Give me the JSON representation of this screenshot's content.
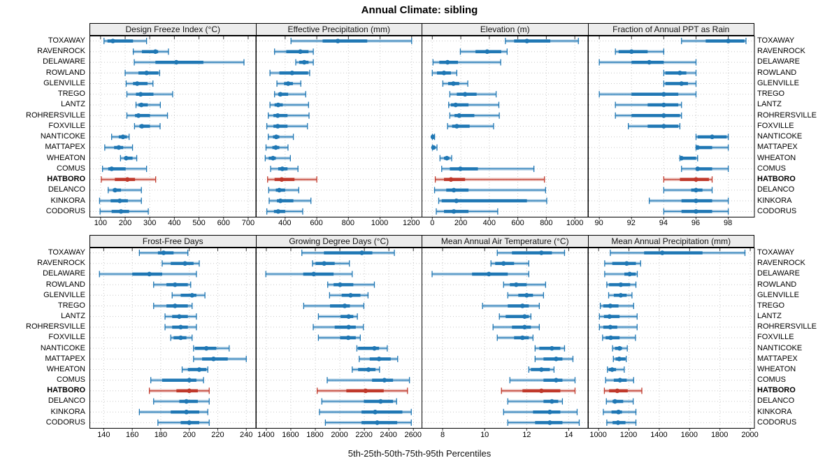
{
  "title": "Annual Climate: sibling",
  "caption": "5th-25th-50th-75th-95th Percentiles",
  "percentile_labels": [
    "5th",
    "25th",
    "50th",
    "75th",
    "95th"
  ],
  "stations": [
    "TOXAWAY",
    "RAVENROCK",
    "DELAWARE",
    "ROWLAND",
    "GLENVILLE",
    "TREGO",
    "LANTZ",
    "ROHRERSVILLE",
    "FOXVILLE",
    "NANTICOKE",
    "MATTAPEX",
    "WHEATON",
    "COMUS",
    "HATBORO",
    "DELANCO",
    "KINKORA",
    "CODORUS"
  ],
  "highlight_station": "HATBORO",
  "colors": {
    "series": "#1f77b4",
    "highlight": "#c0392b",
    "header_bg": "#ececec",
    "grid": "#c8c8c8",
    "border": "#000000",
    "tick": "#333333"
  },
  "chart_data": [
    {
      "type": "interval-dotplot",
      "title": "Design Freeze Index (°C)",
      "xlim": [
        55,
        730
      ],
      "ticks": [
        100,
        200,
        300,
        400,
        500,
        600,
        700
      ],
      "values": [
        [
          114,
          128,
          150,
          232,
          287
        ],
        [
          233,
          268,
          323,
          334,
          376
        ],
        [
          237,
          323,
          408,
          518,
          683
        ],
        [
          200,
          254,
          287,
          335,
          340
        ],
        [
          204,
          232,
          249,
          291,
          313
        ],
        [
          207,
          244,
          263,
          315,
          393
        ],
        [
          244,
          254,
          266,
          292,
          343
        ],
        [
          207,
          240,
          254,
          301,
          372
        ],
        [
          238,
          258,
          268,
          301,
          342
        ],
        [
          145,
          174,
          191,
          207,
          216
        ],
        [
          117,
          155,
          174,
          192,
          230
        ],
        [
          181,
          197,
          204,
          230,
          247
        ],
        [
          108,
          131,
          145,
          202,
          287
        ],
        [
          103,
          158,
          209,
          240,
          324
        ],
        [
          131,
          150,
          159,
          183,
          266
        ],
        [
          96,
          141,
          178,
          211,
          266
        ],
        [
          98,
          145,
          183,
          216,
          294
        ]
      ]
    },
    {
      "type": "interval-dotplot",
      "title": "Effective Precipitation (mm)",
      "xlim": [
        215,
        1265
      ],
      "ticks": [
        400,
        600,
        800,
        1000,
        1200
      ],
      "values": [
        [
          437,
          637,
          733,
          919,
          1200
        ],
        [
          333,
          407,
          496,
          548,
          578
        ],
        [
          467,
          489,
          521,
          548,
          578
        ],
        [
          304,
          363,
          444,
          545,
          555
        ],
        [
          348,
          393,
          419,
          449,
          499
        ],
        [
          333,
          356,
          370,
          419,
          530
        ],
        [
          304,
          333,
          356,
          385,
          548
        ],
        [
          293,
          326,
          353,
          415,
          551
        ],
        [
          284,
          326,
          353,
          415,
          541
        ],
        [
          293,
          323,
          344,
          363,
          452
        ],
        [
          279,
          319,
          341,
          363,
          418
        ],
        [
          274,
          296,
          323,
          341,
          433
        ],
        [
          308,
          356,
          382,
          415,
          481
        ],
        [
          289,
          333,
          378,
          459,
          600
        ],
        [
          296,
          341,
          363,
          400,
          486
        ],
        [
          299,
          348,
          370,
          452,
          563
        ],
        [
          284,
          329,
          356,
          400,
          511
        ]
      ]
    },
    {
      "type": "interval-dotplot",
      "title": "Elevation (m)",
      "xlim": [
        -75,
        1090
      ],
      "ticks": [
        0,
        200,
        400,
        600,
        800,
        1000
      ],
      "values": [
        [
          513,
          574,
          664,
          828,
          1025
        ],
        [
          197,
          303,
          385,
          484,
          525
        ],
        [
          5,
          49,
          107,
          180,
          480
        ],
        [
          0,
          33,
          82,
          131,
          172
        ],
        [
          74,
          111,
          148,
          189,
          249
        ],
        [
          123,
          172,
          230,
          311,
          448
        ],
        [
          115,
          131,
          164,
          254,
          467
        ],
        [
          123,
          156,
          189,
          295,
          470
        ],
        [
          107,
          139,
          172,
          262,
          430
        ],
        [
          1,
          2,
          4,
          8,
          16
        ],
        [
          1,
          3,
          8,
          16,
          33
        ],
        [
          54,
          82,
          102,
          120,
          136
        ],
        [
          66,
          123,
          197,
          320,
          713
        ],
        [
          21,
          82,
          131,
          230,
          787
        ],
        [
          16,
          98,
          151,
          254,
          795
        ],
        [
          45,
          66,
          169,
          664,
          803
        ],
        [
          28,
          82,
          151,
          254,
          459
        ]
      ]
    },
    {
      "type": "interval-dotplot",
      "title": "Fraction of Annual PPT as Rain",
      "xlim": [
        89.3,
        99.6
      ],
      "ticks": [
        90,
        92,
        94,
        96,
        98
      ],
      "values": [
        [
          95.1,
          96.6,
          98.0,
          99.0,
          99.1
        ],
        [
          91.0,
          91.2,
          92.0,
          93.0,
          94.0
        ],
        [
          90.0,
          92.0,
          93.1,
          94.0,
          96.0
        ],
        [
          94.0,
          94.1,
          95.0,
          95.4,
          96.0
        ],
        [
          94.0,
          94.1,
          95.1,
          95.5,
          96.0
        ],
        [
          90.0,
          92.0,
          94.0,
          94.9,
          96.0
        ],
        [
          91.0,
          93.0,
          94.0,
          94.9,
          95.1
        ],
        [
          91.0,
          92.0,
          94.0,
          95.0,
          95.1
        ],
        [
          91.8,
          93.0,
          94.0,
          94.9,
          95.0
        ],
        [
          96.0,
          96.1,
          97.0,
          97.9,
          98.0
        ],
        [
          96.0,
          96.0,
          96.1,
          97.0,
          98.0
        ],
        [
          95.0,
          95.0,
          95.1,
          96.0,
          96.1
        ],
        [
          95.1,
          96.0,
          96.1,
          97.0,
          98.0
        ],
        [
          94.0,
          95.0,
          96.0,
          96.8,
          97.0
        ],
        [
          94.0,
          95.7,
          96.0,
          96.4,
          97.0
        ],
        [
          93.1,
          95.1,
          96.0,
          97.0,
          98.0
        ],
        [
          94.0,
          95.1,
          96.0,
          97.0,
          98.0
        ]
      ]
    },
    {
      "type": "interval-dotplot",
      "title": "Frost-Free Days",
      "xlim": [
        130,
        246.5
      ],
      "ticks": [
        140,
        160,
        180,
        200,
        220,
        240
      ],
      "values": [
        [
          165,
          178,
          182,
          189,
          199
        ],
        [
          181,
          187,
          197,
          203,
          207
        ],
        [
          137,
          160,
          172,
          181,
          205
        ],
        [
          175,
          184,
          190,
          199,
          201
        ],
        [
          188,
          194,
          202,
          205,
          211
        ],
        [
          175,
          184,
          190,
          199,
          202
        ],
        [
          183,
          188,
          193,
          199,
          205
        ],
        [
          183,
          188,
          194,
          199,
          205
        ],
        [
          187,
          189,
          194,
          198,
          202
        ],
        [
          203,
          204,
          212,
          219,
          228
        ],
        [
          203,
          209,
          217,
          227,
          240
        ],
        [
          195,
          199,
          207,
          212,
          213
        ],
        [
          173,
          181,
          200,
          205,
          210
        ],
        [
          172,
          191,
          200,
          206,
          214
        ],
        [
          175,
          193,
          198,
          206,
          214
        ],
        [
          165,
          187,
          198,
          207,
          213
        ],
        [
          178,
          194,
          200,
          207,
          214
        ]
      ]
    },
    {
      "type": "interval-dotplot",
      "title": "Growing Degree Days (°C)",
      "xlim": [
        1315,
        2670
      ],
      "ticks": [
        1400,
        1600,
        1800,
        2000,
        2200,
        2400,
        2600
      ],
      "values": [
        [
          1690,
          1870,
          2180,
          2265,
          2445
        ],
        [
          1777,
          1802,
          1872,
          1958,
          2078
        ],
        [
          1396,
          1701,
          1787,
          1949,
          2101
        ],
        [
          1901,
          1949,
          2002,
          2110,
          2282
        ],
        [
          1916,
          2015,
          2088,
          2168,
          2230
        ],
        [
          1705,
          1920,
          2040,
          2082,
          2196
        ],
        [
          1825,
          2006,
          2072,
          2110,
          2143
        ],
        [
          1783,
          1958,
          2072,
          2130,
          2192
        ],
        [
          1825,
          2002,
          2069,
          2130,
          2167
        ],
        [
          2139,
          2149,
          2282,
          2320,
          2387
        ],
        [
          2158,
          2244,
          2320,
          2415,
          2472
        ],
        [
          2101,
          2149,
          2234,
          2291,
          2324
        ],
        [
          1897,
          2263,
          2364,
          2434,
          2568
        ],
        [
          1815,
          2053,
          2210,
          2358,
          2552
        ],
        [
          1853,
          2196,
          2333,
          2434,
          2463
        ],
        [
          1834,
          2177,
          2288,
          2510,
          2583
        ],
        [
          1882,
          2177,
          2305,
          2468,
          2583
        ]
      ]
    },
    {
      "type": "interval-dotplot",
      "title": "Mean Annual Air Temperature (°C)",
      "xlim": [
        7,
        14.9
      ],
      "ticks": [
        8,
        10,
        12,
        14
      ],
      "values": [
        [
          10.6,
          11.3,
          12.7,
          13.2,
          13.8
        ],
        [
          10.3,
          10.5,
          10.9,
          11.4,
          12.1
        ],
        [
          7.5,
          9.4,
          10.2,
          11.1,
          12.1
        ],
        [
          10.9,
          11.2,
          11.5,
          12.0,
          12.9
        ],
        [
          11.1,
          11.6,
          12.0,
          12.3,
          12.8
        ],
        [
          9.9,
          11.1,
          11.8,
          12.1,
          12.6
        ],
        [
          10.7,
          11.0,
          11.9,
          12.1,
          12.2
        ],
        [
          10.4,
          11.3,
          11.9,
          12.2,
          12.6
        ],
        [
          10.6,
          11.4,
          11.8,
          12.1,
          12.3
        ],
        [
          12.4,
          12.6,
          13.2,
          13.6,
          13.8
        ],
        [
          12.4,
          12.8,
          13.4,
          13.7,
          14.2
        ],
        [
          12.1,
          12.2,
          12.7,
          13.1,
          13.3
        ],
        [
          11.2,
          12.8,
          13.4,
          13.7,
          14.3
        ],
        [
          10.8,
          11.8,
          12.7,
          13.6,
          14.3
        ],
        [
          11.1,
          12.8,
          13.2,
          13.5,
          13.7
        ],
        [
          10.9,
          12.3,
          13.1,
          13.6,
          14.4
        ],
        [
          11.1,
          12.4,
          13.1,
          13.7,
          14.5
        ]
      ]
    },
    {
      "type": "interval-dotplot",
      "title": "Mean Annual Precipitation (mm)",
      "xlim": [
        930,
        2025
      ],
      "ticks": [
        1000,
        1200,
        1400,
        1600,
        1800,
        2000
      ],
      "values": [
        [
          1077,
          1300,
          1420,
          1685,
          1965
        ],
        [
          1040,
          1090,
          1185,
          1246,
          1277
        ],
        [
          1040,
          1170,
          1205,
          1245,
          1255
        ],
        [
          1054,
          1069,
          1146,
          1208,
          1246
        ],
        [
          1066,
          1100,
          1146,
          1185,
          1220
        ],
        [
          1011,
          1031,
          1077,
          1131,
          1231
        ],
        [
          1005,
          1035,
          1072,
          1138,
          1254
        ],
        [
          1005,
          1031,
          1077,
          1123,
          1254
        ],
        [
          1026,
          1046,
          1080,
          1138,
          1243
        ],
        [
          1092,
          1108,
          1138,
          1154,
          1189
        ],
        [
          1097,
          1112,
          1136,
          1177,
          1182
        ],
        [
          1058,
          1066,
          1089,
          1115,
          1169
        ],
        [
          1046,
          1100,
          1141,
          1185,
          1231
        ],
        [
          1038,
          1069,
          1123,
          1192,
          1285
        ],
        [
          1051,
          1092,
          1108,
          1162,
          1228
        ],
        [
          1031,
          1085,
          1131,
          1154,
          1246
        ],
        [
          1054,
          1092,
          1128,
          1177,
          1246
        ]
      ]
    }
  ]
}
